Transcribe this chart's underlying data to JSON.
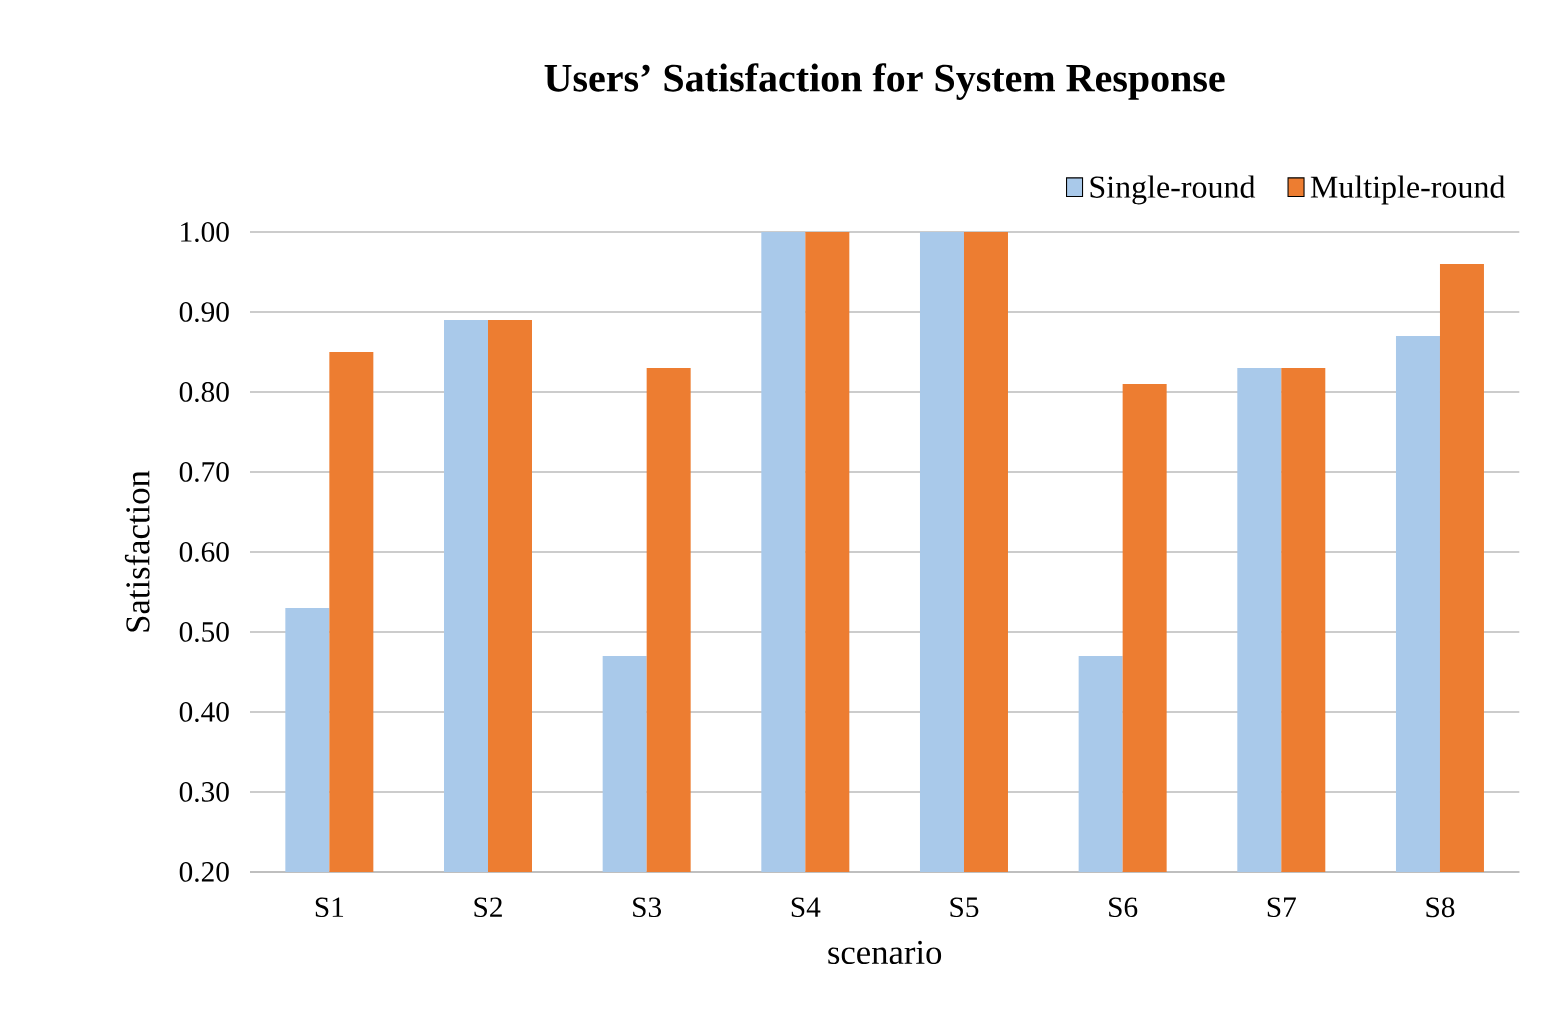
{
  "chart_data": {
    "type": "bar",
    "title": "Users’ Satisfaction for System Response",
    "xlabel": "scenario",
    "ylabel": "Satisfaction",
    "categories": [
      "S1",
      "S2",
      "S3",
      "S4",
      "S5",
      "S6",
      "S7",
      "S8"
    ],
    "series": [
      {
        "name": "Single-round",
        "color": "#a9c9ea",
        "values": [
          0.53,
          0.89,
          0.47,
          1.0,
          1.0,
          0.47,
          0.83,
          0.87
        ]
      },
      {
        "name": "Multiple-round",
        "color": "#ed7d31",
        "values": [
          0.85,
          0.89,
          0.83,
          1.0,
          1.0,
          0.81,
          0.83,
          0.96
        ]
      }
    ],
    "ylim": [
      0.2,
      1.0
    ],
    "yticks": [
      {
        "value": 0.2,
        "label": "0.20"
      },
      {
        "value": 0.3,
        "label": "0.30"
      },
      {
        "value": 0.4,
        "label": "0.40"
      },
      {
        "value": 0.5,
        "label": "0.50"
      },
      {
        "value": 0.6,
        "label": "0.60"
      },
      {
        "value": 0.7,
        "label": "0.70"
      },
      {
        "value": 0.8,
        "label": "0.80"
      },
      {
        "value": 0.9,
        "label": "0.90"
      },
      {
        "value": 1.0,
        "label": "1.00"
      }
    ],
    "grid": "y",
    "legend": "top right"
  }
}
